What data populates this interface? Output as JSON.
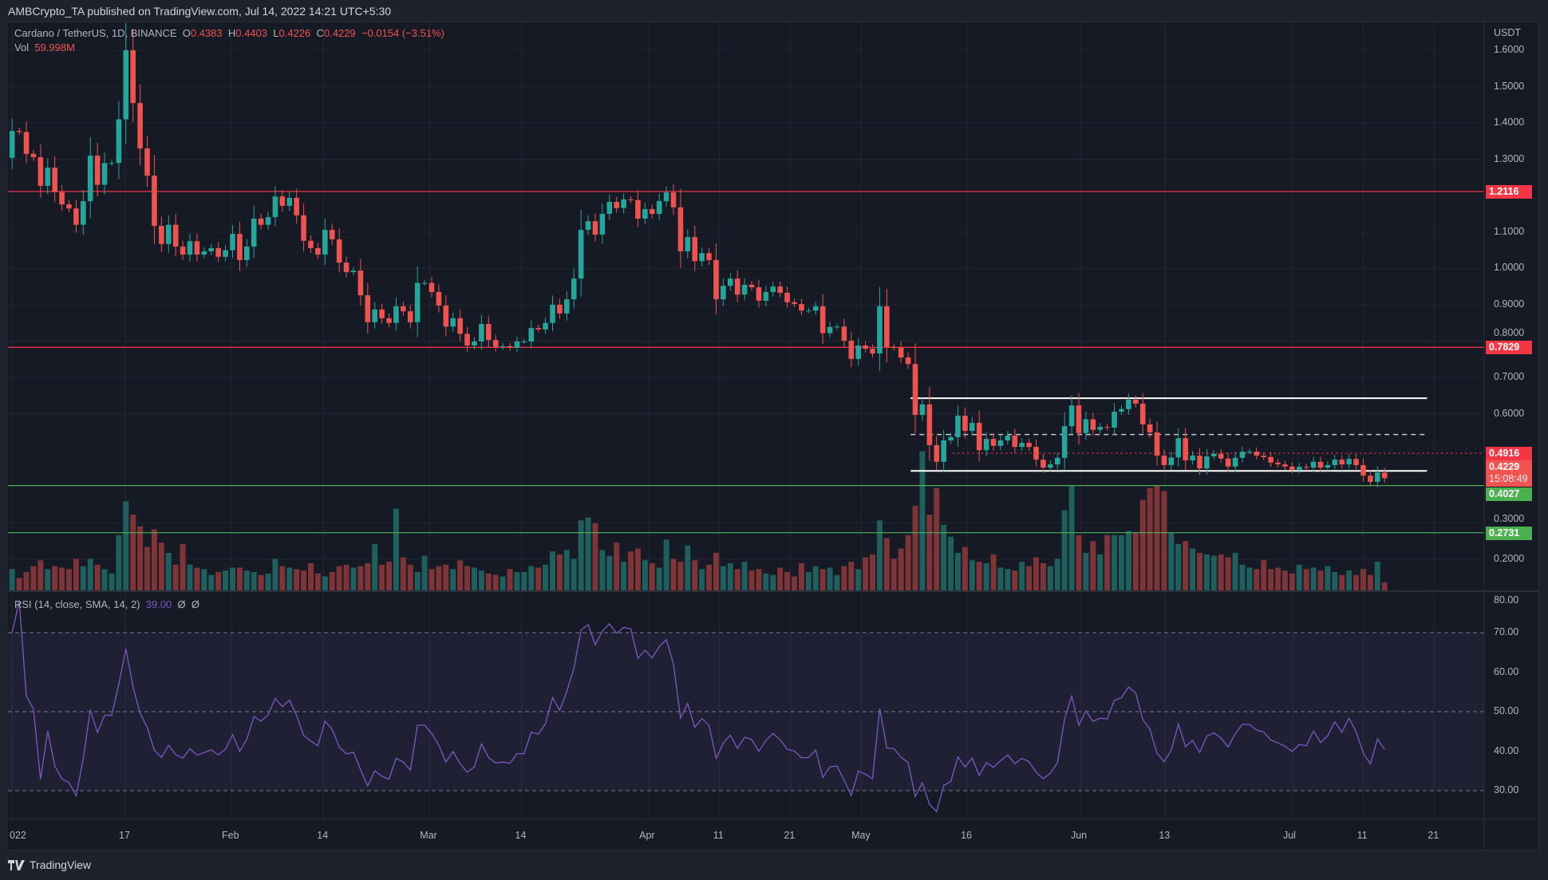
{
  "header": {
    "published": "AMBCrypto_TA published on TradingView.com, Jul 14, 2022 14:21 UTC+5:30"
  },
  "legend": {
    "symbol": "Cardano / TetherUS, 1D, BINANCE",
    "o_label": "O",
    "o": "0.4383",
    "h_label": "H",
    "h": "0.4403",
    "l_label": "L",
    "l": "0.4226",
    "c_label": "C",
    "c": "0.4229",
    "change": "−0.0154 (−3.51%)",
    "vol_label": "Vol",
    "vol": "59.998M"
  },
  "rsi_legend": {
    "label": "RSI (14, close, SMA, 14, 2)",
    "value": "39.00",
    "na1": "Ø",
    "na2": "Ø"
  },
  "footer": {
    "brand": "TradingView"
  },
  "colors": {
    "up": "#26a69a",
    "down": "#ef5350",
    "vol_up": "#1f605e",
    "vol_down": "#7f3438",
    "rsi": "#7e57c2",
    "bg": "#161a25",
    "resistance": "#f23645",
    "support": "#4caf50",
    "range": "#ffffff"
  },
  "chart_data": {
    "type": "candlestick",
    "symbol": "ADA/USDT",
    "x_range": [
      "2022-01-01",
      "2022-07-14"
    ],
    "y_unit": "USDT",
    "ylim": [
      0.15,
      1.67
    ],
    "price_ticks": [
      "1.6000",
      "1.5000",
      "1.4000",
      "1.3000",
      "1.1000",
      "1.0000",
      "0.9000",
      "0.8000",
      "0.7000",
      "0.6000",
      "0.3000",
      "0.2000"
    ],
    "close": [
      1.378,
      1.375,
      1.315,
      1.306,
      1.227,
      1.277,
      1.21,
      1.176,
      1.165,
      1.12,
      1.185,
      1.31,
      1.23,
      1.29,
      1.29,
      1.41,
      1.6,
      1.455,
      1.33,
      1.255,
      1.117,
      1.067,
      1.12,
      1.06,
      1.038,
      1.075,
      1.038,
      1.047,
      1.056,
      1.032,
      1.05,
      1.095,
      1.023,
      1.06,
      1.137,
      1.12,
      1.141,
      1.198,
      1.172,
      1.194,
      1.146,
      1.076,
      1.056,
      1.038,
      1.106,
      1.08,
      1.016,
      0.99,
      0.994,
      0.926,
      0.852,
      0.887,
      0.863,
      0.85,
      0.896,
      0.882,
      0.852,
      0.96,
      0.96,
      0.935,
      0.898,
      0.84,
      0.863,
      0.82,
      0.788,
      0.799,
      0.847,
      0.803,
      0.784,
      0.786,
      0.782,
      0.799,
      0.799,
      0.836,
      0.832,
      0.85,
      0.9,
      0.876,
      0.915,
      0.972,
      1.106,
      1.13,
      1.093,
      1.15,
      1.183,
      1.166,
      1.19,
      1.188,
      1.137,
      1.163,
      1.15,
      1.185,
      1.209,
      1.168,
      1.047,
      1.086,
      1.02,
      1.042,
      1.023,
      0.915,
      0.952,
      0.972,
      0.928,
      0.955,
      0.948,
      0.911,
      0.935,
      0.95,
      0.933,
      0.907,
      0.902,
      0.884,
      0.884,
      0.896,
      0.822,
      0.839,
      0.84,
      0.801,
      0.751,
      0.788,
      0.779,
      0.766,
      0.896,
      0.784,
      0.782,
      0.755,
      0.737,
      0.597,
      0.626,
      0.514,
      0.468,
      0.527,
      0.536,
      0.595,
      0.553,
      0.575,
      0.5,
      0.531,
      0.512,
      0.527,
      0.54,
      0.509,
      0.52,
      0.509,
      0.474,
      0.452,
      0.461,
      0.479,
      0.566,
      0.623,
      0.547,
      0.585,
      0.556,
      0.564,
      0.562,
      0.606,
      0.613,
      0.639,
      0.628,
      0.571,
      0.549,
      0.485,
      0.459,
      0.48,
      0.533,
      0.472,
      0.485,
      0.45,
      0.483,
      0.49,
      0.477,
      0.455,
      0.479,
      0.496,
      0.496,
      0.485,
      0.481,
      0.466,
      0.461,
      0.455,
      0.446,
      0.454,
      0.452,
      0.468,
      0.452,
      0.459,
      0.474,
      0.461,
      0.476,
      0.459,
      0.43,
      0.413,
      0.4383,
      0.4229
    ],
    "first_open": 1.304,
    "volume_m": [
      150,
      90,
      130,
      170,
      210,
      150,
      170,
      160,
      150,
      220,
      170,
      220,
      180,
      150,
      120,
      380,
      610,
      520,
      440,
      300,
      420,
      330,
      260,
      180,
      320,
      180,
      160,
      150,
      110,
      130,
      140,
      160,
      160,
      140,
      130,
      110,
      120,
      220,
      170,
      160,
      150,
      140,
      190,
      120,
      100,
      130,
      170,
      180,
      160,
      170,
      190,
      320,
      180,
      200,
      560,
      230,
      180,
      130,
      240,
      150,
      170,
      180,
      150,
      210,
      170,
      160,
      140,
      120,
      110,
      100,
      150,
      130,
      130,
      170,
      160,
      180,
      270,
      250,
      280,
      220,
      480,
      500,
      460,
      280,
      240,
      330,
      200,
      270,
      290,
      210,
      190,
      160,
      350,
      220,
      200,
      310,
      210,
      150,
      180,
      260,
      170,
      190,
      150,
      200,
      140,
      150,
      120,
      110,
      160,
      130,
      100,
      190,
      130,
      170,
      150,
      160,
      110,
      170,
      200,
      150,
      230,
      250,
      480,
      360,
      220,
      290,
      380,
      580,
      950,
      520,
      700,
      450,
      370,
      260,
      300,
      210,
      200,
      190,
      250,
      160,
      150,
      140,
      200,
      170,
      230,
      190,
      170,
      220,
      550,
      720,
      380,
      260,
      340,
      250,
      380,
      380,
      380,
      410,
      400,
      620,
      700,
      720,
      680,
      400,
      320,
      340,
      290,
      260,
      250,
      240,
      250,
      230,
      260,
      180,
      160,
      150,
      210,
      150,
      160,
      140,
      120,
      180,
      150,
      160,
      140,
      170,
      130,
      110,
      140,
      110,
      150,
      110,
      200,
      60
    ],
    "levels": [
      {
        "price": 1.2116,
        "label": "1.2116",
        "kind": "resistance",
        "style": "solid"
      },
      {
        "price": 0.7829,
        "label": "0.7829",
        "kind": "resistance",
        "style": "solid"
      },
      {
        "price": 0.4916,
        "label": "0.4916",
        "kind": "resistance",
        "style": "dotted",
        "from": "2022-05-14"
      },
      {
        "price": 0.4027,
        "label": "0.4027",
        "kind": "support",
        "style": "solid"
      },
      {
        "price": 0.2731,
        "label": "0.2731",
        "kind": "support",
        "style": "solid"
      }
    ],
    "range_box": {
      "from": "2022-05-08",
      "to": "2022-07-20",
      "top": 0.643,
      "mid": 0.543,
      "bottom": 0.443
    },
    "last_price": {
      "label": "0.4229",
      "countdown": "15:08:49"
    },
    "rsi": {
      "period": 14,
      "upper": 70,
      "middle": 50,
      "lower": 30,
      "ticks": [
        "80.00",
        "70.00",
        "60.00",
        "50.00",
        "40.00",
        "30.00"
      ]
    },
    "date_ticks": [
      {
        "label": "022",
        "date": "2022-01-01"
      },
      {
        "label": "17",
        "date": "2022-01-17"
      },
      {
        "label": "Feb",
        "date": "2022-02-01"
      },
      {
        "label": "14",
        "date": "2022-02-14"
      },
      {
        "label": "Mar",
        "date": "2022-03-01"
      },
      {
        "label": "14",
        "date": "2022-03-14"
      },
      {
        "label": "Apr",
        "date": "2022-04-01"
      },
      {
        "label": "11",
        "date": "2022-04-11"
      },
      {
        "label": "21",
        "date": "2022-04-21"
      },
      {
        "label": "May",
        "date": "2022-05-01"
      },
      {
        "label": "16",
        "date": "2022-05-16"
      },
      {
        "label": "Jun",
        "date": "2022-06-01"
      },
      {
        "label": "13",
        "date": "2022-06-13"
      },
      {
        "label": "Jul",
        "date": "2022-07-01"
      },
      {
        "label": "11",
        "date": "2022-07-11"
      },
      {
        "label": "21",
        "date": "2022-07-21"
      }
    ],
    "y_axis_title": "USDT"
  }
}
